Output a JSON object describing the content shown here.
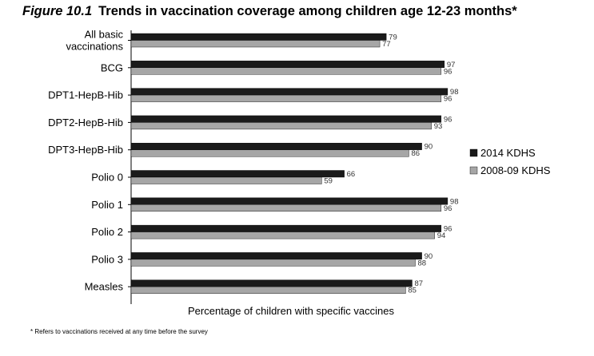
{
  "figure_label": "Figure 10.1",
  "figure_title": "Trends in vaccination coverage among children age 12-23 months*",
  "footnote": "* Refers to vaccinations received at any time before the survey",
  "chart_data": {
    "type": "bar",
    "orientation": "horizontal",
    "title": "Trends in vaccination coverage among children age 12-23 months*",
    "xlabel": "Percentage of children with specific vaccines",
    "ylabel": "",
    "xlim": [
      0,
      100
    ],
    "grid": false,
    "legend_position": "right",
    "categories": [
      [
        "All basic",
        "vaccinations"
      ],
      [
        "BCG"
      ],
      [
        "DPT1-HepB-Hib"
      ],
      [
        "DPT2-HepB-Hib"
      ],
      [
        "DPT3-HepB-Hib"
      ],
      [
        "Polio 0"
      ],
      [
        "Polio 1"
      ],
      [
        "Polio 2"
      ],
      [
        "Polio 3"
      ],
      [
        "Measles"
      ]
    ],
    "series": [
      {
        "name": "2014 KDHS",
        "color": "#1a1a1a",
        "values": [
          79,
          97,
          98,
          96,
          90,
          66,
          98,
          96,
          90,
          87
        ]
      },
      {
        "name": "2008-09 KDHS",
        "color": "#a6a6a6",
        "values": [
          77,
          96,
          96,
          93,
          86,
          59,
          96,
          94,
          88,
          85
        ]
      }
    ]
  }
}
